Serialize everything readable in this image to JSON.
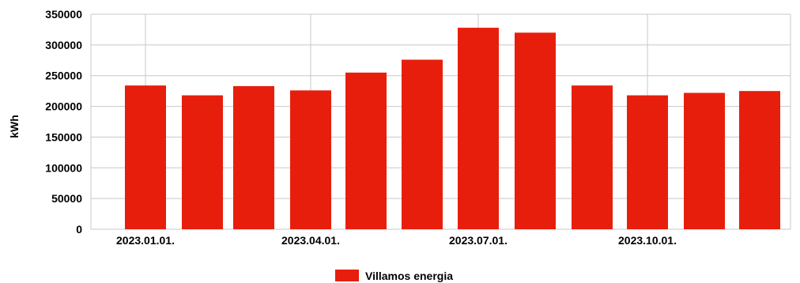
{
  "chart_data": {
    "type": "bar",
    "ylabel": "kWh",
    "ylim": [
      0,
      350000
    ],
    "y_ticks": [
      0,
      50000,
      100000,
      150000,
      200000,
      250000,
      300000,
      350000
    ],
    "x_tick_labels": [
      "2023.01.01.",
      "2023.04.01.",
      "2023.07.01.",
      "2023.10.01."
    ],
    "x_tick_label_bar_index": [
      0,
      3,
      6,
      9
    ],
    "months": [
      "2023.01",
      "2023.02",
      "2023.03",
      "2023.04",
      "2023.05",
      "2023.06",
      "2023.07",
      "2023.08",
      "2023.09",
      "2023.10",
      "2023.11",
      "2023.12"
    ],
    "series": [
      {
        "name": "Villamos energia",
        "color": "#e81e0d",
        "values": [
          234000,
          218000,
          233000,
          226000,
          255000,
          276000,
          328000,
          320000,
          234000,
          218000,
          222000,
          225000
        ]
      }
    ],
    "grid": true,
    "legend_position": "bottom-center"
  }
}
